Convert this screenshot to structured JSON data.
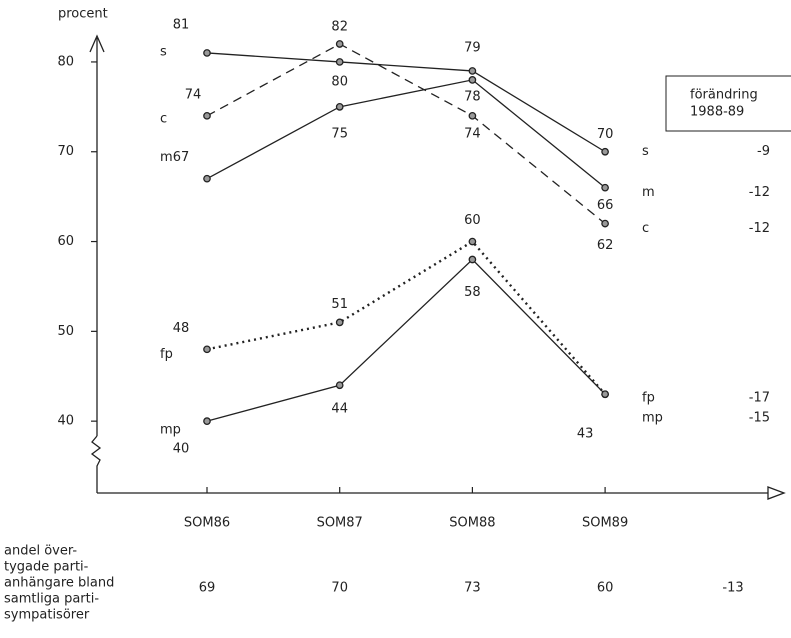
{
  "chart_data": {
    "type": "line",
    "y_label": "procent",
    "categories": [
      "SOM86",
      "SOM87",
      "SOM88",
      "SOM89"
    ],
    "ylim": [
      32,
      83
    ],
    "yticks": [
      40,
      50,
      60,
      70,
      80
    ],
    "change_header": [
      "förändring",
      "1988-89"
    ],
    "series": [
      {
        "name": "s",
        "color": "#222222",
        "dash": "solid",
        "values": [
          81,
          80,
          79,
          70
        ],
        "change": -9
      },
      {
        "name": "c",
        "color": "#222222",
        "dash": "dashed",
        "values": [
          74,
          82,
          74,
          62
        ],
        "change": -12
      },
      {
        "name": "m",
        "color": "#222222",
        "dash": "solid",
        "values": [
          67,
          75,
          78,
          66
        ],
        "change": -12
      },
      {
        "name": "fp",
        "color": "#222222",
        "dash": "dotted",
        "values": [
          48,
          51,
          60,
          43
        ],
        "change": -17
      },
      {
        "name": "mp",
        "color": "#222222",
        "dash": "solid",
        "values": [
          40,
          44,
          58,
          43
        ],
        "change": -15
      }
    ],
    "summary_row": {
      "label": [
        "andel över-",
        "tygade parti-",
        "anhängare bland",
        "samtliga parti-",
        "sympatisörer"
      ],
      "values": [
        69,
        70,
        73,
        60
      ],
      "change": -13
    }
  }
}
